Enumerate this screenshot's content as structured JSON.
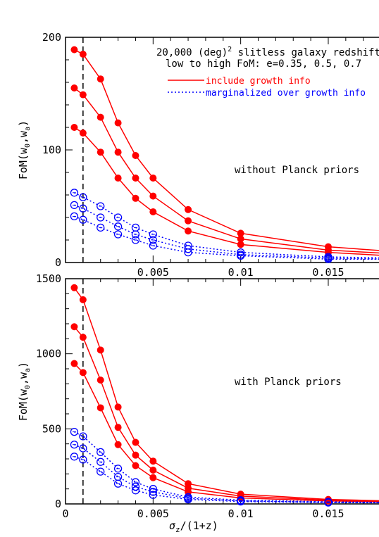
{
  "figure": {
    "xlabel_main": "σ",
    "xlabel_sub": "z",
    "xlabel_tail": "/(1+z)",
    "ylabel_top": "FoM(w",
    "ylabel_sub0": "0",
    "ylabel_mid": ",w",
    "ylabel_suba": "a",
    "ylabel_end": ")",
    "header_line1": "20,000 (deg)",
    "header_sup": "2",
    "header_line1_tail": " slitless galaxy redshift surve",
    "header_line2": "low to high FoM: e=0.35, 0.5, 0.7",
    "legend_solid": "include growth info",
    "legend_dotted": "marginalized over growth info",
    "colors": {
      "growth": "#ff0000",
      "marginalized": "#0000ff",
      "axis": "#000000"
    }
  },
  "chart_data": [
    {
      "type": "line",
      "note": "without Planck priors",
      "xlabel": "σz/(1+z)",
      "ylabel": "FoM(w0,wa)",
      "xlim": [
        0,
        0.0185
      ],
      "ylim": [
        0,
        200
      ],
      "xticks": [
        "",
        "0.005",
        "0.01",
        "0.015"
      ],
      "yticks": [
        "0",
        "100",
        "200"
      ],
      "vline_x": 0.001,
      "x": [
        0.0005,
        0.001,
        0.002,
        0.003,
        0.004,
        0.005,
        0.007,
        0.01,
        0.015,
        0.0185
      ],
      "series": [
        {
          "name": "include growth info",
          "group": "solid",
          "values": [
            189,
            185,
            163,
            124,
            95,
            75,
            47,
            26,
            14,
            10
          ]
        },
        {
          "name": "include growth info",
          "group": "solid",
          "values": [
            155,
            149,
            129,
            98,
            75,
            59,
            37,
            21,
            11,
            8
          ]
        },
        {
          "name": "include growth info",
          "group": "solid",
          "values": [
            120,
            115,
            98,
            75,
            57,
            45,
            28,
            16,
            9,
            6
          ]
        },
        {
          "name": "marginalized over growth info",
          "group": "dotted",
          "values": [
            62,
            58,
            50,
            40,
            31,
            25,
            15,
            9,
            5,
            4
          ]
        },
        {
          "name": "marginalized over growth info",
          "group": "dotted",
          "values": [
            51,
            48,
            40,
            32,
            25,
            20,
            12,
            7,
            4,
            3
          ]
        },
        {
          "name": "marginalized over growth info",
          "group": "dotted",
          "values": [
            41,
            38,
            31,
            25,
            20,
            15,
            9,
            6,
            3,
            3
          ]
        }
      ],
      "marker_count": 9
    },
    {
      "type": "line",
      "note": "with Planck priors",
      "xlabel": "σz/(1+z)",
      "ylabel": "FoM(w0,wa)",
      "xlim": [
        0,
        0.0185
      ],
      "ylim": [
        0,
        1500
      ],
      "xticks": [
        "0",
        "0.005",
        "0.01",
        "0.015"
      ],
      "yticks": [
        "0",
        "500",
        "1000",
        "1500"
      ],
      "vline_x": 0.001,
      "x": [
        0.0005,
        0.001,
        0.002,
        0.003,
        0.004,
        0.005,
        0.007,
        0.01,
        0.015,
        0.0185
      ],
      "series": [
        {
          "name": "include growth info",
          "group": "solid",
          "values": [
            1440,
            1360,
            1025,
            645,
            410,
            285,
            135,
            65,
            30,
            20
          ]
        },
        {
          "name": "include growth info",
          "group": "solid",
          "values": [
            1180,
            1110,
            825,
            510,
            325,
            225,
            105,
            52,
            25,
            17
          ]
        },
        {
          "name": "include growth info",
          "group": "solid",
          "values": [
            935,
            875,
            640,
            395,
            255,
            175,
            80,
            40,
            20,
            14
          ]
        },
        {
          "name": "marginalized over growth info",
          "group": "dotted",
          "values": [
            480,
            450,
            345,
            235,
            145,
            100,
            45,
            25,
            14,
            10
          ]
        },
        {
          "name": "marginalized over growth info",
          "group": "dotted",
          "values": [
            395,
            370,
            280,
            180,
            115,
            80,
            37,
            20,
            11,
            8
          ]
        },
        {
          "name": "marginalized over growth info",
          "group": "dotted",
          "values": [
            315,
            295,
            215,
            135,
            90,
            60,
            30,
            16,
            9,
            7
          ]
        }
      ],
      "marker_count": 9
    }
  ]
}
